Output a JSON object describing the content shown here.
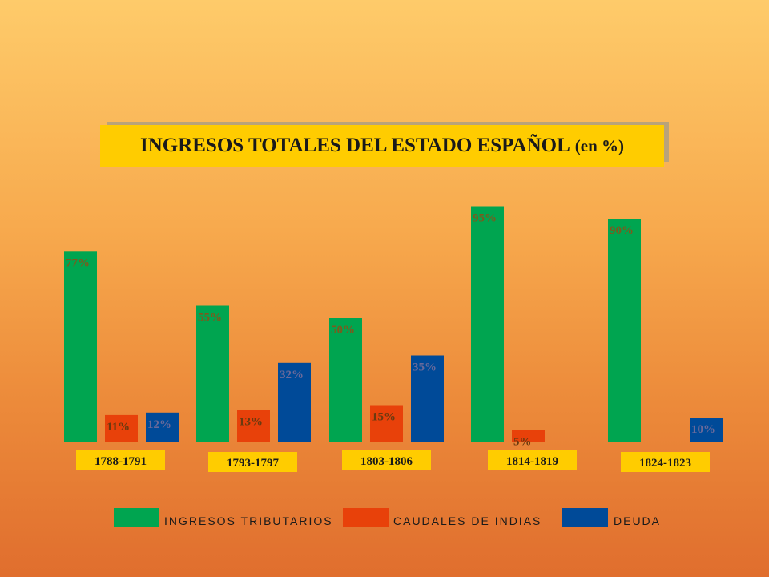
{
  "title": {
    "main": "INGRESOS TOTALES DEL ESTADO ESPAÑOL",
    "sub": "(en %)"
  },
  "chart_data": {
    "type": "bar",
    "title": "INGRESOS TOTALES DEL ESTADO ESPAÑOL (en %)",
    "categories": [
      "1788-1791",
      "1793-1797",
      "1803-1806",
      "1814-1819",
      "1824-1823"
    ],
    "series": [
      {
        "name": "INGRESOS TRIBUTARIOS",
        "color": "#00a550",
        "values": [
          77,
          55,
          50,
          95,
          90
        ],
        "labels": [
          "77%",
          "55%",
          "50%",
          "95%",
          "90%"
        ]
      },
      {
        "name": "CAUDALES DE INDIAS",
        "color": "#e8410a",
        "values": [
          11,
          13,
          15,
          5,
          null
        ],
        "labels": [
          "11%",
          "13%",
          "15%",
          "5%",
          ""
        ]
      },
      {
        "name": "DEUDA",
        "color": "#004a98",
        "values": [
          12,
          32,
          35,
          null,
          10
        ],
        "labels": [
          "12%",
          "32%",
          "35%",
          "",
          "10%"
        ]
      }
    ],
    "ylim": [
      0,
      100
    ],
    "grid": false,
    "legend": "bottom"
  }
}
